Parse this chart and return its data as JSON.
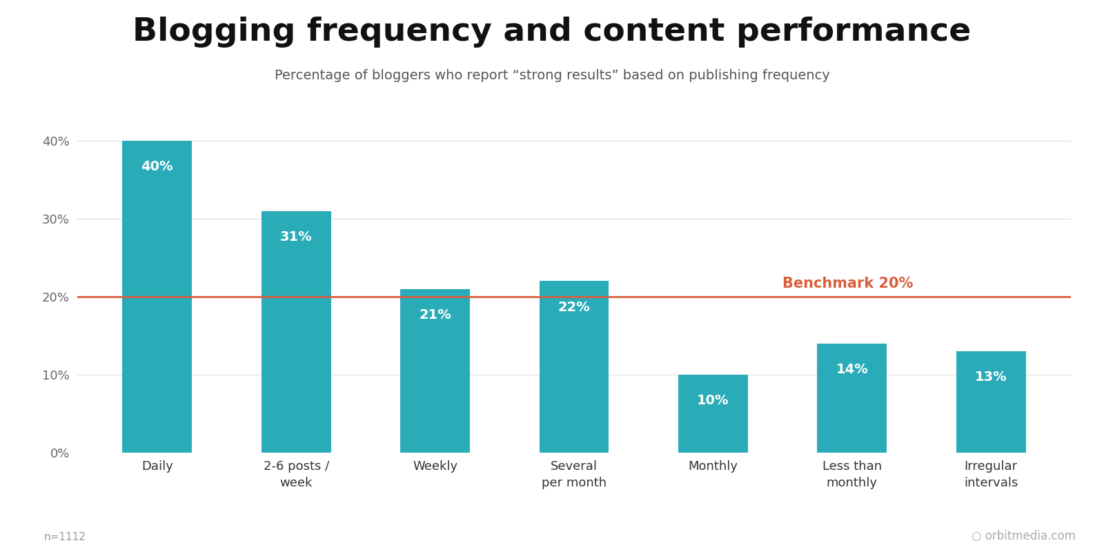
{
  "title": "Blogging frequency and content performance",
  "subtitle": "Percentage of bloggers who report “strong results” based on publishing frequency",
  "categories": [
    "Daily",
    "2-6 posts /\nweek",
    "Weekly",
    "Several\nper month",
    "Monthly",
    "Less than\nmonthly",
    "Irregular\nintervals"
  ],
  "values": [
    40,
    31,
    21,
    22,
    10,
    14,
    13
  ],
  "bar_color": "#2aacb8",
  "label_color": "#ffffff",
  "benchmark_value": 20,
  "benchmark_color": "#d95f3b",
  "benchmark_label": "Benchmark 20%",
  "yticks": [
    0,
    10,
    20,
    30,
    40
  ],
  "ylim": [
    0,
    46
  ],
  "background_color": "#ffffff",
  "title_fontsize": 34,
  "subtitle_fontsize": 14,
  "tick_fontsize": 13,
  "bar_label_fontsize": 14,
  "footnote": "n=1112",
  "footnote_fontsize": 11,
  "watermark": " orbitmedia.com",
  "watermark_fontsize": 12
}
